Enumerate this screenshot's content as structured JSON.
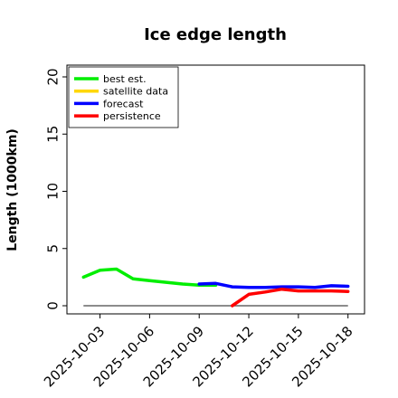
{
  "chart_data": {
    "type": "line",
    "title": "Ice edge length",
    "xlabel": "",
    "ylabel": "Length (1000km)",
    "ylim": [
      0,
      20
    ],
    "xlim": [
      "2025-10-01",
      "2025-10-19"
    ],
    "y_ticks": [
      "0",
      "5",
      "10",
      "15",
      "20"
    ],
    "x_ticks": [
      "2025-10-03",
      "2025-10-06",
      "2025-10-09",
      "2025-10-12",
      "2025-10-15",
      "2025-10-18"
    ],
    "highlighted_x_tick": "2025-10-09",
    "highlight_color": "#228B22",
    "grid": false,
    "legend_position": "top-left",
    "baseline": 0,
    "series": [
      {
        "name": "best est.",
        "color": "#00ee00",
        "x": [
          "2025-10-02",
          "2025-10-03",
          "2025-10-04",
          "2025-10-05",
          "2025-10-06",
          "2025-10-07",
          "2025-10-08",
          "2025-10-09",
          "2025-10-10"
        ],
        "values": [
          2.5,
          3.1,
          3.2,
          2.35,
          2.2,
          2.05,
          1.9,
          1.8,
          1.8
        ]
      },
      {
        "name": "satellite data",
        "color": "#ffd700",
        "x": [],
        "values": []
      },
      {
        "name": "forecast",
        "color": "#0000ff",
        "x": [
          "2025-10-09",
          "2025-10-10",
          "2025-10-11",
          "2025-10-12",
          "2025-10-13",
          "2025-10-14",
          "2025-10-15",
          "2025-10-16",
          "2025-10-17",
          "2025-10-18"
        ],
        "values": [
          1.9,
          1.95,
          1.65,
          1.6,
          1.6,
          1.65,
          1.65,
          1.6,
          1.75,
          1.7
        ]
      },
      {
        "name": "persistence",
        "color": "#ff0000",
        "x": [
          "2025-10-11",
          "2025-10-12",
          "2025-10-13",
          "2025-10-14",
          "2025-10-15",
          "2025-10-16",
          "2025-10-17",
          "2025-10-18"
        ],
        "values": [
          0.0,
          1.0,
          1.2,
          1.45,
          1.3,
          1.3,
          1.3,
          1.25
        ]
      }
    ]
  }
}
